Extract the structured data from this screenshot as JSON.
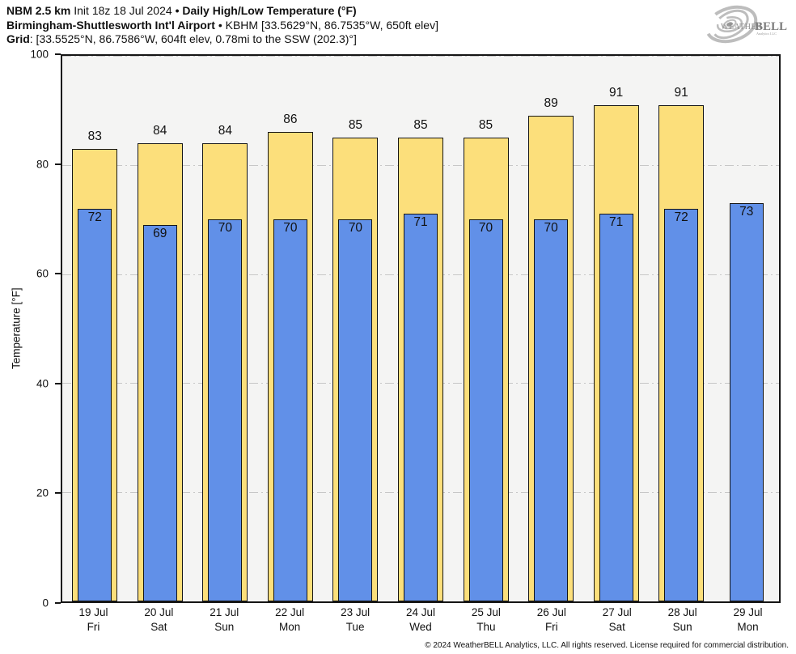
{
  "header": {
    "line1": {
      "model": "NBM 2.5 km",
      "init": "Init 18z 18 Jul 2024",
      "bullet": "•",
      "product": "Daily High/Low Temperature (°F)"
    },
    "line2": {
      "station": "Birmingham-Shuttlesworth Int'l Airport",
      "bullet": "•",
      "details": "KBHM [33.5629°N, 86.7535°W, 650ft elev]"
    },
    "line3": {
      "label": "Grid",
      "details": ": [33.5525°N, 86.7586°W, 604ft elev, 0.78mi to the SSW (202.3)°]"
    }
  },
  "logo": {
    "brand_weather": "Weather",
    "brand_bell": "BELL",
    "subtitle": "Analytics LLC"
  },
  "chart_data": {
    "type": "bar",
    "title": "Daily High/Low Temperature (°F)",
    "ylabel": "Temperature [°F]",
    "ylim": [
      0,
      100
    ],
    "yticks": [
      0,
      20,
      40,
      60,
      80,
      100
    ],
    "grid": true,
    "plot_bg": "#f4f4f3",
    "categories": [
      {
        "date": "19 Jul",
        "day": "Fri"
      },
      {
        "date": "20 Jul",
        "day": "Sat"
      },
      {
        "date": "21 Jul",
        "day": "Sun"
      },
      {
        "date": "22 Jul",
        "day": "Mon"
      },
      {
        "date": "23 Jul",
        "day": "Tue"
      },
      {
        "date": "24 Jul",
        "day": "Wed"
      },
      {
        "date": "25 Jul",
        "day": "Thu"
      },
      {
        "date": "26 Jul",
        "day": "Fri"
      },
      {
        "date": "27 Jul",
        "day": "Sat"
      },
      {
        "date": "28 Jul",
        "day": "Sun"
      },
      {
        "date": "29 Jul",
        "day": "Mon"
      }
    ],
    "series": [
      {
        "name": "Daily High",
        "color": "#FCDF7B",
        "values": [
          83,
          84,
          84,
          86,
          85,
          85,
          85,
          89,
          91,
          91,
          null
        ]
      },
      {
        "name": "Daily Low",
        "color": "#6190E8",
        "values": [
          72,
          69,
          70,
          70,
          70,
          71,
          70,
          70,
          71,
          72,
          73
        ]
      }
    ]
  },
  "footer": {
    "copyright": "© 2024 WeatherBELL Analytics, LLC. All rights reserved. License required for commercial distribution."
  }
}
